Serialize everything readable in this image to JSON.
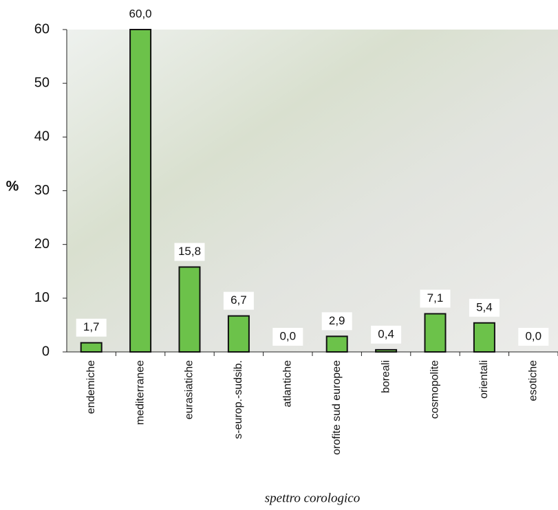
{
  "chart_data": {
    "type": "bar",
    "categories": [
      "endemiche",
      "mediterranee",
      "eurasiatiche",
      "s-europ.-sudsib.",
      "atlantiche",
      "orofite sud europee",
      "boreali",
      "cosmopolite",
      "orientali",
      "esotiche"
    ],
    "values": [
      1.7,
      60.0,
      15.8,
      6.7,
      0.0,
      2.9,
      0.4,
      7.1,
      5.4,
      0.0
    ],
    "value_labels": [
      "1,7",
      "60,0",
      "15,8",
      "6,7",
      "0,0",
      "2,9",
      "0,4",
      "7,1",
      "5,4",
      "0,0"
    ],
    "color": "#6cc24a",
    "ylabel": "%",
    "xlabel": "spettro corologico",
    "ylim": [
      0,
      60
    ],
    "yticks": [
      0,
      10,
      20,
      30,
      40,
      50,
      60
    ]
  }
}
